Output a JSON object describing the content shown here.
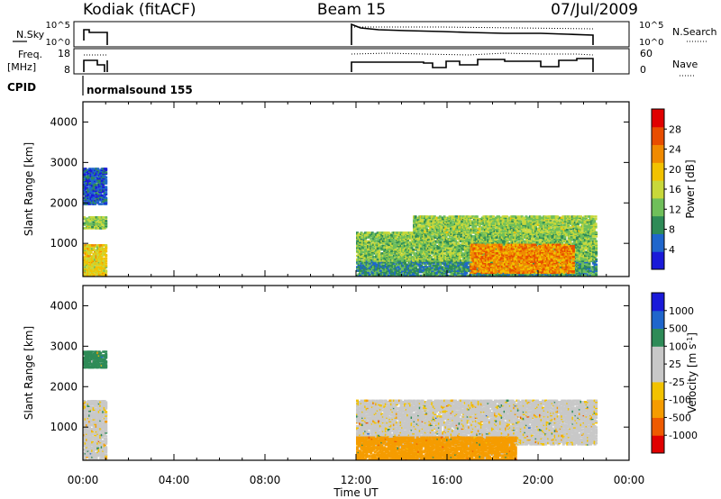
{
  "header": {
    "title_left": "Kodiak (fitACF)",
    "title_center": "Beam 15",
    "title_right": "07/Jul/2009"
  },
  "summary": {
    "nsky_label": "N.Sky",
    "nsky_ticks": [
      "10^5",
      "10^0"
    ],
    "nsearch_label": "N.Search",
    "nsearch_ticks": [
      "10^5",
      "10^0"
    ],
    "freq_label_line1": "Freq.",
    "freq_label_line2": "[MHz]",
    "freq_ticks": [
      "18",
      "8"
    ],
    "nave_label": "Nave",
    "nave_ticks": [
      "60",
      "0"
    ],
    "cpid_label": "CPID",
    "cpid_text": "normalsound 155"
  },
  "colors": {
    "power": [
      "#1a1ad9",
      "#1f66cc",
      "#2e8b57",
      "#6fbf5a",
      "#c8d83a",
      "#f2c200",
      "#f08a00",
      "#e84d00",
      "#e00000"
    ],
    "velocity": [
      "#e00000",
      "#ee5a00",
      "#f59c00",
      "#f2c200",
      "#c8c8c8",
      "#c8c8c8",
      "#2e8b57",
      "#1f66cc",
      "#1a1ad9"
    ]
  },
  "chart_data": [
    {
      "type": "heatmap",
      "title": "",
      "xlabel": "",
      "ylabel": "Slant Range [km]",
      "xlim": [
        "00:00",
        "24:00"
      ],
      "ylim": [
        180,
        4500
      ],
      "y_ticks": [
        "1000",
        "2000",
        "3000",
        "4000"
      ],
      "colorbar_label": "Power [dB]",
      "colorbar_ticks": [
        "4",
        "8",
        "12",
        "16",
        "20",
        "24",
        "28"
      ],
      "colorbar_range": [
        0,
        32
      ],
      "data_regions": [
        {
          "t_start": 0.0,
          "t_end": 1.0,
          "range_start": 200,
          "range_end": 1000,
          "value": 18
        },
        {
          "t_start": 0.0,
          "t_end": 1.0,
          "range_start": 1400,
          "range_end": 1700,
          "value": 14
        },
        {
          "t_start": 0.0,
          "t_end": 1.0,
          "range_start": 2000,
          "range_end": 2900,
          "value": 5
        },
        {
          "t_start": 12.0,
          "t_end": 22.5,
          "range_start": 200,
          "range_end": 600,
          "value": 9
        },
        {
          "t_start": 12.0,
          "t_end": 22.5,
          "range_start": 600,
          "range_end": 1300,
          "value": 13
        },
        {
          "t_start": 14.5,
          "t_end": 22.5,
          "range_start": 1300,
          "range_end": 1700,
          "value": 14
        },
        {
          "t_start": 17.0,
          "t_end": 21.5,
          "range_start": 300,
          "range_end": 1000,
          "value": 23
        }
      ]
    },
    {
      "type": "heatmap",
      "title": "",
      "xlabel": "Time UT",
      "ylabel": "Slant Range [km]",
      "xlim": [
        "00:00",
        "24:00"
      ],
      "ylim": [
        180,
        4500
      ],
      "x_ticks": [
        "00:00",
        "04:00",
        "08:00",
        "12:00",
        "16:00",
        "20:00",
        "00:00"
      ],
      "y_ticks": [
        "1000",
        "2000",
        "3000",
        "4000"
      ],
      "colorbar_label": "Velocity [m s^-1]",
      "colorbar_ticks": [
        "1000",
        "500",
        "100",
        "25",
        "-25",
        "-100",
        "-500",
        "-1000"
      ],
      "data_regions": [
        {
          "t_start": 0.0,
          "t_end": 1.0,
          "range_start": 200,
          "range_end": 1700,
          "value": 0
        },
        {
          "t_start": 0.0,
          "t_end": 1.0,
          "range_start": 2500,
          "range_end": 2900,
          "value": 200
        },
        {
          "t_start": 12.0,
          "t_end": 22.5,
          "range_start": 600,
          "range_end": 1700,
          "value": 0
        },
        {
          "t_start": 12.0,
          "t_end": 19.0,
          "range_start": 200,
          "range_end": 800,
          "value": -150
        }
      ]
    }
  ]
}
